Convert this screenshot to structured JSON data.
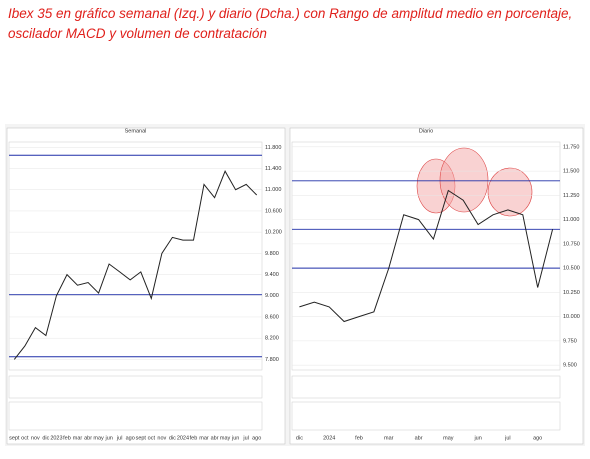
{
  "header": {
    "title_lines": [
      "Ibex 35 en gráfico semanal (Izq.) y diario (Dcha.) con Rango de amplitud medio en porcentaje,",
      "oscilador MACD y volumen de contratación"
    ]
  },
  "chart_data": [
    {
      "type": "line",
      "title": "Semanal",
      "color": "#222222",
      "level_color": "#1f2fa8",
      "categories": [
        "sept",
        "oct",
        "nov",
        "dic",
        "2023",
        "feb",
        "mar",
        "abr",
        "may",
        "jun",
        "jul",
        "ago",
        "sept",
        "oct",
        "nov",
        "dic",
        "2024",
        "feb",
        "mar",
        "abr",
        "may",
        "jun",
        "jul",
        "ago"
      ],
      "values": [
        7800,
        8050,
        8400,
        8250,
        9000,
        9400,
        9200,
        9250,
        9050,
        9600,
        9450,
        9300,
        9450,
        8950,
        9800,
        10100,
        10050,
        10050,
        11100,
        10850,
        11350,
        11000,
        11100,
        10900
      ],
      "levels": [
        11650,
        9020,
        7850
      ],
      "ylim": [
        7600,
        11900
      ],
      "yticks": [
        {
          "value": 11800,
          "label": "11.800"
        },
        {
          "value": 11400,
          "label": "11.400"
        },
        {
          "value": 11000,
          "label": "11.000"
        },
        {
          "value": 10600,
          "label": "10.600"
        },
        {
          "value": 10200,
          "label": "10.200"
        },
        {
          "value": 9800,
          "label": "9.800"
        },
        {
          "value": 9400,
          "label": "9.400"
        },
        {
          "value": 9000,
          "label": "9.000"
        },
        {
          "value": 8600,
          "label": "8.600"
        },
        {
          "value": 8200,
          "label": "8.200"
        },
        {
          "value": 7800,
          "label": "7.800"
        }
      ]
    },
    {
      "type": "line",
      "title": "Diario",
      "color": "#222222",
      "level_color": "#1f2fa8",
      "categories": [
        "dic",
        null,
        "2024",
        null,
        "feb",
        null,
        "mar",
        null,
        "abr",
        null,
        "may",
        null,
        "jun",
        null,
        "jul",
        null,
        "ago",
        null
      ],
      "values": [
        10100,
        10150,
        10100,
        9950,
        10000,
        10050,
        10500,
        11050,
        11000,
        10800,
        11300,
        11200,
        10950,
        11050,
        11100,
        11050,
        10300,
        10900
      ],
      "levels": [
        11400,
        10900,
        10500
      ],
      "ylim": [
        9450,
        11800
      ],
      "yticks": [
        {
          "value": 11750,
          "label": "11.750"
        },
        {
          "value": 11500,
          "label": "11.500"
        },
        {
          "value": 11250,
          "label": "11.250"
        },
        {
          "value": 11000,
          "label": "11.000"
        },
        {
          "value": 10750,
          "label": "10.750"
        },
        {
          "value": 10500,
          "label": "10.500"
        },
        {
          "value": 10250,
          "label": "10.250"
        },
        {
          "value": 10000,
          "label": "10.000"
        },
        {
          "value": 9750,
          "label": "9.750"
        },
        {
          "value": 9500,
          "label": "9.500"
        }
      ]
    }
  ]
}
